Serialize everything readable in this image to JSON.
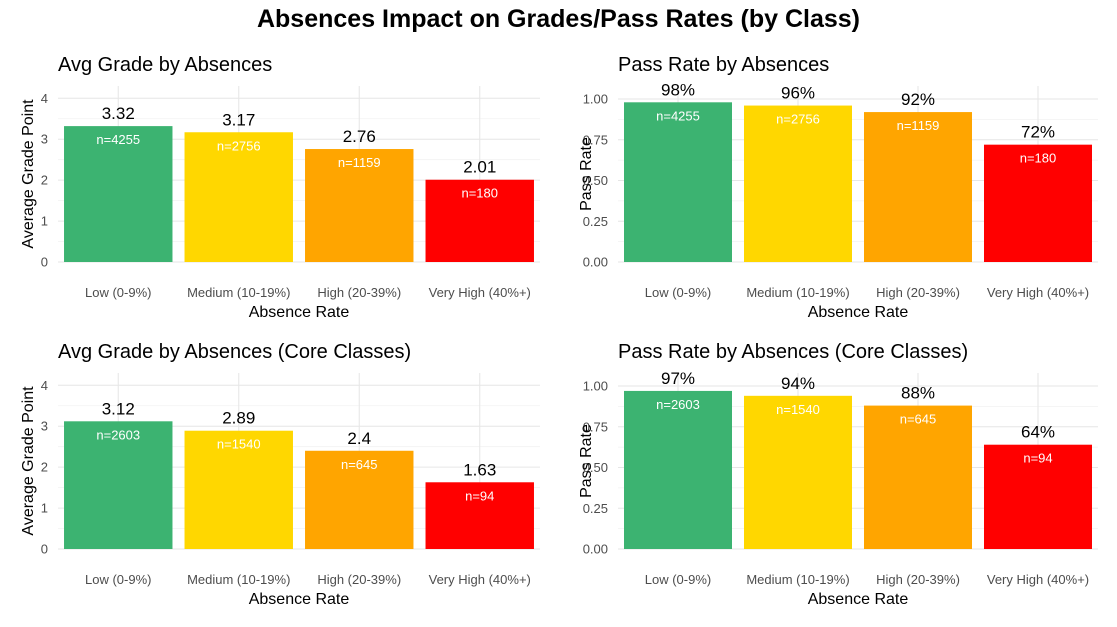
{
  "title": "Absences Impact on Grades/Pass Rates (by Class)",
  "chart_data": [
    {
      "type": "bar",
      "title": "Avg Grade by Absences",
      "xlabel": "Absence Rate",
      "ylabel": "Average Grade Point",
      "categories": [
        "Low (0-9%)",
        "Medium (10-19%)",
        "High (20-39%)",
        "Very High (40%+)"
      ],
      "values": [
        3.32,
        3.17,
        2.76,
        2.01
      ],
      "value_labels": [
        "3.32",
        "3.17",
        "2.76",
        "2.01"
      ],
      "counts": [
        "n=4255",
        "n=2756",
        "n=1159",
        "n=180"
      ],
      "ylim": [
        0,
        4.3
      ],
      "yticks": [
        0,
        1,
        2,
        3,
        4
      ],
      "ytick_labels": [
        "0",
        "1",
        "2",
        "3",
        "4"
      ],
      "colors": [
        "#3cb371",
        "#ffd700",
        "#ffa500",
        "#ff0000"
      ],
      "grid": true
    },
    {
      "type": "bar",
      "title": "Pass Rate by Absences",
      "xlabel": "Absence Rate",
      "ylabel": "Pass Rate",
      "categories": [
        "Low (0-9%)",
        "Medium (10-19%)",
        "High (20-39%)",
        "Very High (40%+)"
      ],
      "values": [
        0.98,
        0.96,
        0.92,
        0.72
      ],
      "value_labels": [
        "98%",
        "96%",
        "92%",
        "72%"
      ],
      "counts": [
        "n=4255",
        "n=2756",
        "n=1159",
        "n=180"
      ],
      "ylim": [
        0,
        1.08
      ],
      "yticks": [
        0,
        0.25,
        0.5,
        0.75,
        1.0
      ],
      "ytick_labels": [
        "0.00",
        "0.25",
        "0.50",
        "0.75",
        "1.00"
      ],
      "colors": [
        "#3cb371",
        "#ffd700",
        "#ffa500",
        "#ff0000"
      ],
      "grid": true
    },
    {
      "type": "bar",
      "title": "Avg Grade by Absences (Core Classes)",
      "xlabel": "Absence Rate",
      "ylabel": "Average Grade Point",
      "categories": [
        "Low (0-9%)",
        "Medium (10-19%)",
        "High (20-39%)",
        "Very High (40%+)"
      ],
      "values": [
        3.12,
        2.89,
        2.4,
        1.63
      ],
      "value_labels": [
        "3.12",
        "2.89",
        "2.4",
        "1.63"
      ],
      "counts": [
        "n=2603",
        "n=1540",
        "n=645",
        "n=94"
      ],
      "ylim": [
        0,
        4.3
      ],
      "yticks": [
        0,
        1,
        2,
        3,
        4
      ],
      "ytick_labels": [
        "0",
        "1",
        "2",
        "3",
        "4"
      ],
      "colors": [
        "#3cb371",
        "#ffd700",
        "#ffa500",
        "#ff0000"
      ],
      "grid": true
    },
    {
      "type": "bar",
      "title": "Pass Rate by Absences (Core Classes)",
      "xlabel": "Absence Rate",
      "ylabel": "Pass Rate",
      "categories": [
        "Low (0-9%)",
        "Medium (10-19%)",
        "High (20-39%)",
        "Very High (40%+)"
      ],
      "values": [
        0.97,
        0.94,
        0.88,
        0.64
      ],
      "value_labels": [
        "97%",
        "94%",
        "88%",
        "64%"
      ],
      "counts": [
        "n=2603",
        "n=1540",
        "n=645",
        "n=94"
      ],
      "ylim": [
        0,
        1.08
      ],
      "yticks": [
        0,
        0.25,
        0.5,
        0.75,
        1.0
      ],
      "ytick_labels": [
        "0.00",
        "0.25",
        "0.50",
        "0.75",
        "1.00"
      ],
      "colors": [
        "#3cb371",
        "#ffd700",
        "#ffa500",
        "#ff0000"
      ],
      "grid": true
    }
  ]
}
